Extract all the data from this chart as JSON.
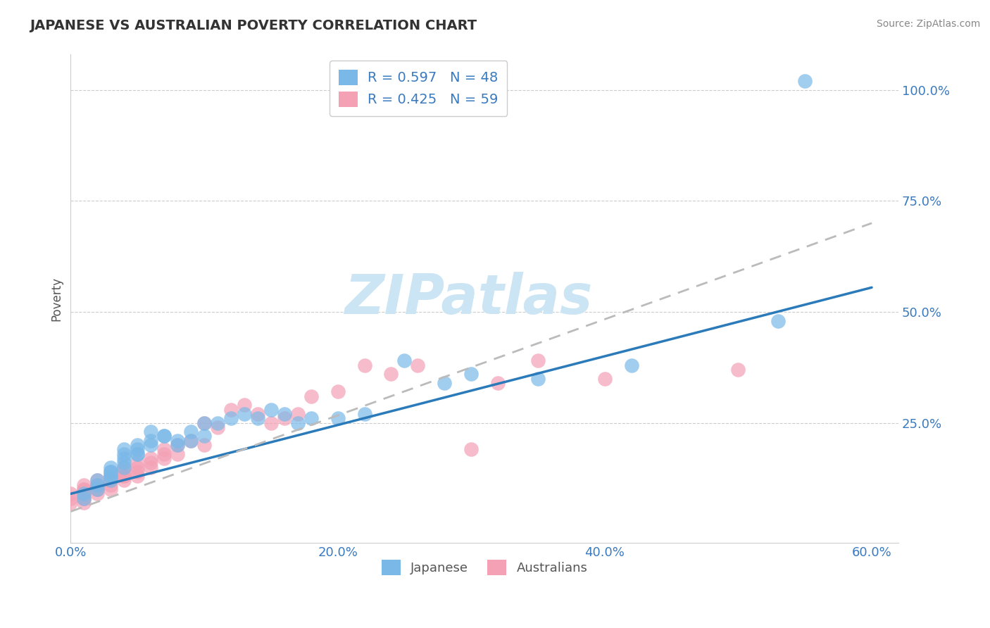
{
  "title": "JAPANESE VS AUSTRALIAN POVERTY CORRELATION CHART",
  "source": "Source: ZipAtlas.com",
  "xlabel_ticks": [
    "0.0%",
    "20.0%",
    "40.0%",
    "60.0%"
  ],
  "ylabel_ticks": [
    "100.0%",
    "75.0%",
    "50.0%",
    "25.0%"
  ],
  "xlim": [
    0.0,
    0.62
  ],
  "ylim": [
    -0.02,
    1.08
  ],
  "japanese_R": 0.597,
  "japanese_N": 48,
  "australian_R": 0.425,
  "australian_N": 59,
  "japanese_color": "#7ab8e8",
  "australian_color": "#f4a0b5",
  "japanese_line_color": "#2b7bba",
  "watermark_color": "#cce5f5",
  "background_color": "#ffffff",
  "grid_color": "#cccccc",
  "legend_label_japanese": "Japanese",
  "legend_label_australian": "Australians",
  "japanese_line_x0": 0.0,
  "japanese_line_y0": 0.09,
  "japanese_line_x1": 0.6,
  "japanese_line_y1": 0.555,
  "australian_line_x0": 0.0,
  "australian_line_y0": 0.05,
  "australian_line_x1": 0.6,
  "australian_line_y1": 0.7,
  "japanese_scatter_x": [
    0.55,
    0.42,
    0.35,
    0.3,
    0.28,
    0.22,
    0.2,
    0.18,
    0.17,
    0.16,
    0.15,
    0.14,
    0.13,
    0.12,
    0.11,
    0.1,
    0.1,
    0.09,
    0.09,
    0.08,
    0.08,
    0.07,
    0.07,
    0.06,
    0.06,
    0.06,
    0.05,
    0.05,
    0.05,
    0.05,
    0.04,
    0.04,
    0.04,
    0.04,
    0.04,
    0.03,
    0.03,
    0.03,
    0.03,
    0.03,
    0.03,
    0.02,
    0.02,
    0.02,
    0.01,
    0.01,
    0.53,
    0.25
  ],
  "japanese_scatter_y": [
    1.02,
    0.38,
    0.35,
    0.36,
    0.34,
    0.27,
    0.26,
    0.26,
    0.25,
    0.27,
    0.28,
    0.26,
    0.27,
    0.26,
    0.25,
    0.22,
    0.25,
    0.21,
    0.23,
    0.2,
    0.21,
    0.22,
    0.22,
    0.21,
    0.2,
    0.23,
    0.19,
    0.18,
    0.2,
    0.18,
    0.18,
    0.17,
    0.16,
    0.19,
    0.15,
    0.15,
    0.14,
    0.13,
    0.12,
    0.14,
    0.13,
    0.12,
    0.11,
    0.1,
    0.09,
    0.08,
    0.48,
    0.39
  ],
  "australian_scatter_x": [
    0.0,
    0.0,
    0.0,
    0.01,
    0.01,
    0.01,
    0.01,
    0.01,
    0.01,
    0.01,
    0.01,
    0.02,
    0.02,
    0.02,
    0.02,
    0.02,
    0.02,
    0.03,
    0.03,
    0.03,
    0.03,
    0.03,
    0.04,
    0.04,
    0.04,
    0.04,
    0.04,
    0.05,
    0.05,
    0.05,
    0.05,
    0.06,
    0.06,
    0.06,
    0.07,
    0.07,
    0.07,
    0.08,
    0.08,
    0.09,
    0.1,
    0.1,
    0.11,
    0.12,
    0.13,
    0.14,
    0.15,
    0.16,
    0.17,
    0.18,
    0.2,
    0.22,
    0.24,
    0.26,
    0.3,
    0.32,
    0.35,
    0.4,
    0.5
  ],
  "australian_scatter_y": [
    0.08,
    0.07,
    0.09,
    0.07,
    0.08,
    0.09,
    0.1,
    0.09,
    0.1,
    0.11,
    0.08,
    0.1,
    0.11,
    0.1,
    0.12,
    0.09,
    0.11,
    0.12,
    0.11,
    0.13,
    0.1,
    0.12,
    0.13,
    0.12,
    0.14,
    0.13,
    0.15,
    0.14,
    0.15,
    0.13,
    0.16,
    0.15,
    0.17,
    0.16,
    0.18,
    0.17,
    0.19,
    0.18,
    0.2,
    0.21,
    0.2,
    0.25,
    0.24,
    0.28,
    0.29,
    0.27,
    0.25,
    0.26,
    0.27,
    0.31,
    0.32,
    0.38,
    0.36,
    0.38,
    0.19,
    0.34,
    0.39,
    0.35,
    0.37
  ]
}
